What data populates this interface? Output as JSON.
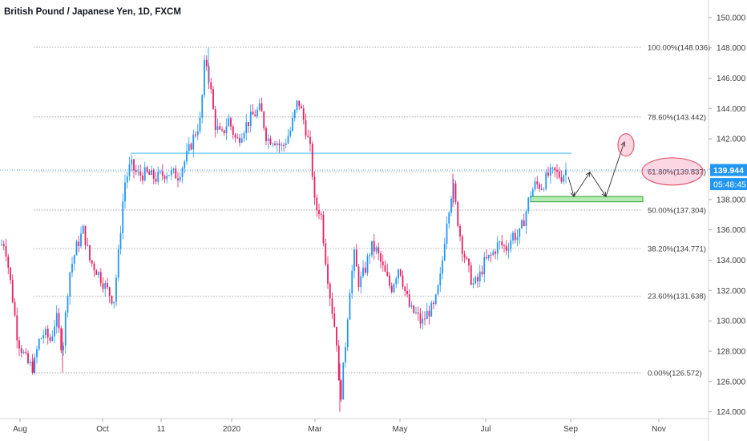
{
  "title": "British Pound / Japanese Yen, 1D, FXCM",
  "colors": {
    "up": "#2196f3",
    "down": "#e91e63",
    "fib": "#777777",
    "resistance": "#7fd0f5",
    "support_fill": "#b5ecb2",
    "support_stroke": "#2e9d2e",
    "price_tag": "#2196f3",
    "circle": "#e0415f"
  },
  "price_axis": {
    "ticks": [
      "150.000",
      "148.000",
      "146.000",
      "144.000",
      "142.000",
      "140.000",
      "138.000",
      "136.000",
      "134.000",
      "132.000",
      "130.000",
      "128.000",
      "126.000",
      "124.000"
    ]
  },
  "time_axis": {
    "ticks": [
      "Aug",
      "Oct",
      "11",
      "2020",
      "Mar",
      "May",
      "Jul",
      "Sep",
      "Nov"
    ]
  },
  "last_price": "139.944",
  "countdown": "05:48:45",
  "chart_data": {
    "type": "candlestick",
    "symbol": "GBPJPY",
    "interval": "1D",
    "ylim": [
      123.8,
      151.0
    ],
    "y_ticks": [
      150,
      148,
      146,
      144,
      142,
      140,
      138,
      136,
      134,
      132,
      130,
      128,
      126,
      124
    ],
    "fib_levels": [
      {
        "label": "100.00%(148.036)",
        "value": 148.036
      },
      {
        "label": "78.60%(143.442)",
        "value": 143.442
      },
      {
        "label": "61.80%(139.837)",
        "value": 139.837
      },
      {
        "label": "50.00%(137.304)",
        "value": 137.304
      },
      {
        "label": "38.20%(134.771)",
        "value": 134.771
      },
      {
        "label": "23.60%(131.638)",
        "value": 131.638
      },
      {
        "label": "0.00%(126.572)",
        "value": 126.572
      }
    ],
    "resistance_level": 141.05,
    "support_zone": [
      137.85,
      138.2
    ],
    "last_price": 139.944,
    "swing_points": [
      {
        "label": "low Aug",
        "value": 126.57
      },
      {
        "label": "high Dec",
        "value": 148.04
      },
      {
        "label": "low Mar",
        "value": 124.0
      },
      {
        "label": "high Jun",
        "value": 139.8
      },
      {
        "label": "current",
        "value": 139.94
      }
    ],
    "projection_path": [
      139.5,
      138.2,
      139.8,
      138.2,
      141.8
    ]
  }
}
